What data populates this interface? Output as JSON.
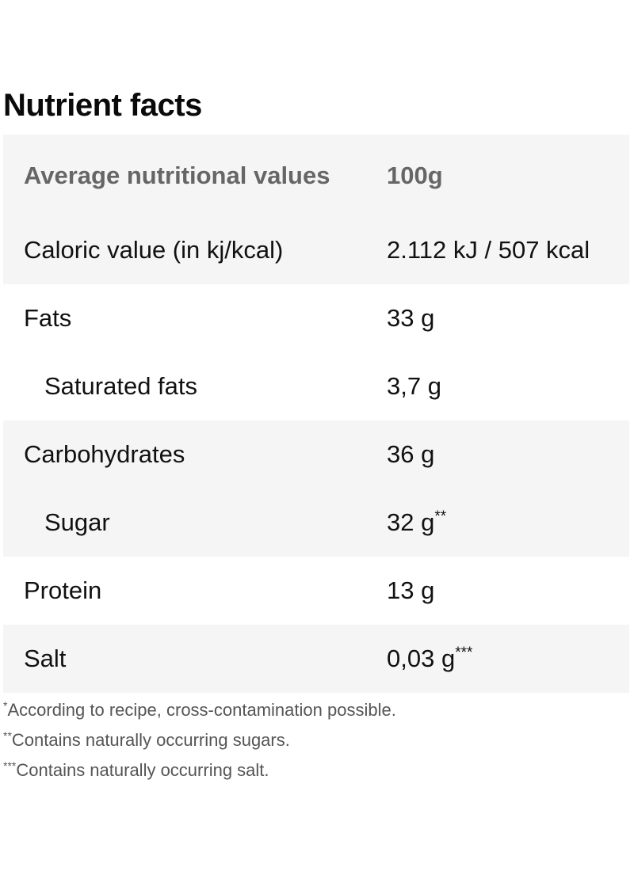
{
  "title": "Nutrient facts",
  "table": {
    "header": {
      "label": "Average nutritional values",
      "value": "100g"
    },
    "rows": [
      {
        "label": "Caloric value (in kj/kcal)",
        "value": "2.112 kJ / 507 kcal",
        "mark": ""
      },
      {
        "label": "Fats",
        "value": "33 g",
        "mark": ""
      },
      {
        "label": "Saturated fats",
        "value": "3,7 g",
        "mark": ""
      },
      {
        "label": "Carbohydrates",
        "value": "36 g",
        "mark": ""
      },
      {
        "label": "Sugar",
        "value": "32 g",
        "mark": "**"
      },
      {
        "label": "Protein",
        "value": "13 g",
        "mark": ""
      },
      {
        "label": "Salt",
        "value": "0,03 g",
        "mark": "***"
      }
    ]
  },
  "footnotes": [
    {
      "mark": "*",
      "text": "According to recipe, cross-contamination possible."
    },
    {
      "mark": "**",
      "text": "Contains naturally occurring sugars."
    },
    {
      "mark": "***",
      "text": "Contains naturally occurring salt."
    }
  ]
}
